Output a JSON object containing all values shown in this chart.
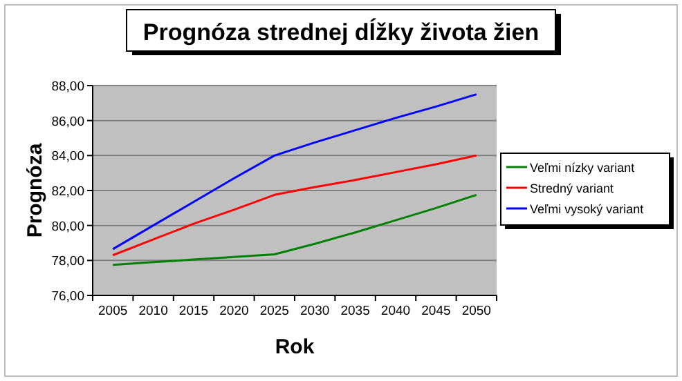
{
  "chart_data": {
    "type": "line",
    "title": "Prognóza strednej dĺžky života žien",
    "xlabel": "Rok",
    "ylabel": "Prognóza",
    "categories": [
      "2005",
      "2010",
      "2015",
      "2020",
      "2025",
      "2030",
      "2035",
      "2040",
      "2045",
      "2050"
    ],
    "series": [
      {
        "name": "Veľmi nízky variant",
        "color": "#008000",
        "values": [
          77.75,
          77.9,
          78.05,
          78.2,
          78.35,
          78.95,
          79.6,
          80.3,
          81.0,
          81.75
        ]
      },
      {
        "name": "Stredný variant",
        "color": "#ff0000",
        "values": [
          78.3,
          79.2,
          80.1,
          80.9,
          81.75,
          82.2,
          82.6,
          83.05,
          83.5,
          84.0
        ]
      },
      {
        "name": "Veľmi vysoký variant",
        "color": "#0000ff",
        "values": [
          78.65,
          80.0,
          81.35,
          82.7,
          84.0,
          84.75,
          85.45,
          86.15,
          86.8,
          87.5
        ]
      }
    ],
    "ylim": [
      76,
      88
    ],
    "yticks": [
      {
        "value": 76,
        "label": "76,00"
      },
      {
        "value": 78,
        "label": "78,00"
      },
      {
        "value": 80,
        "label": "80,00"
      },
      {
        "value": 82,
        "label": "82,00"
      },
      {
        "value": 84,
        "label": "84,00"
      },
      {
        "value": 86,
        "label": "86,00"
      },
      {
        "value": 88,
        "label": "88,00"
      }
    ],
    "grid": "y",
    "legend": "right"
  }
}
